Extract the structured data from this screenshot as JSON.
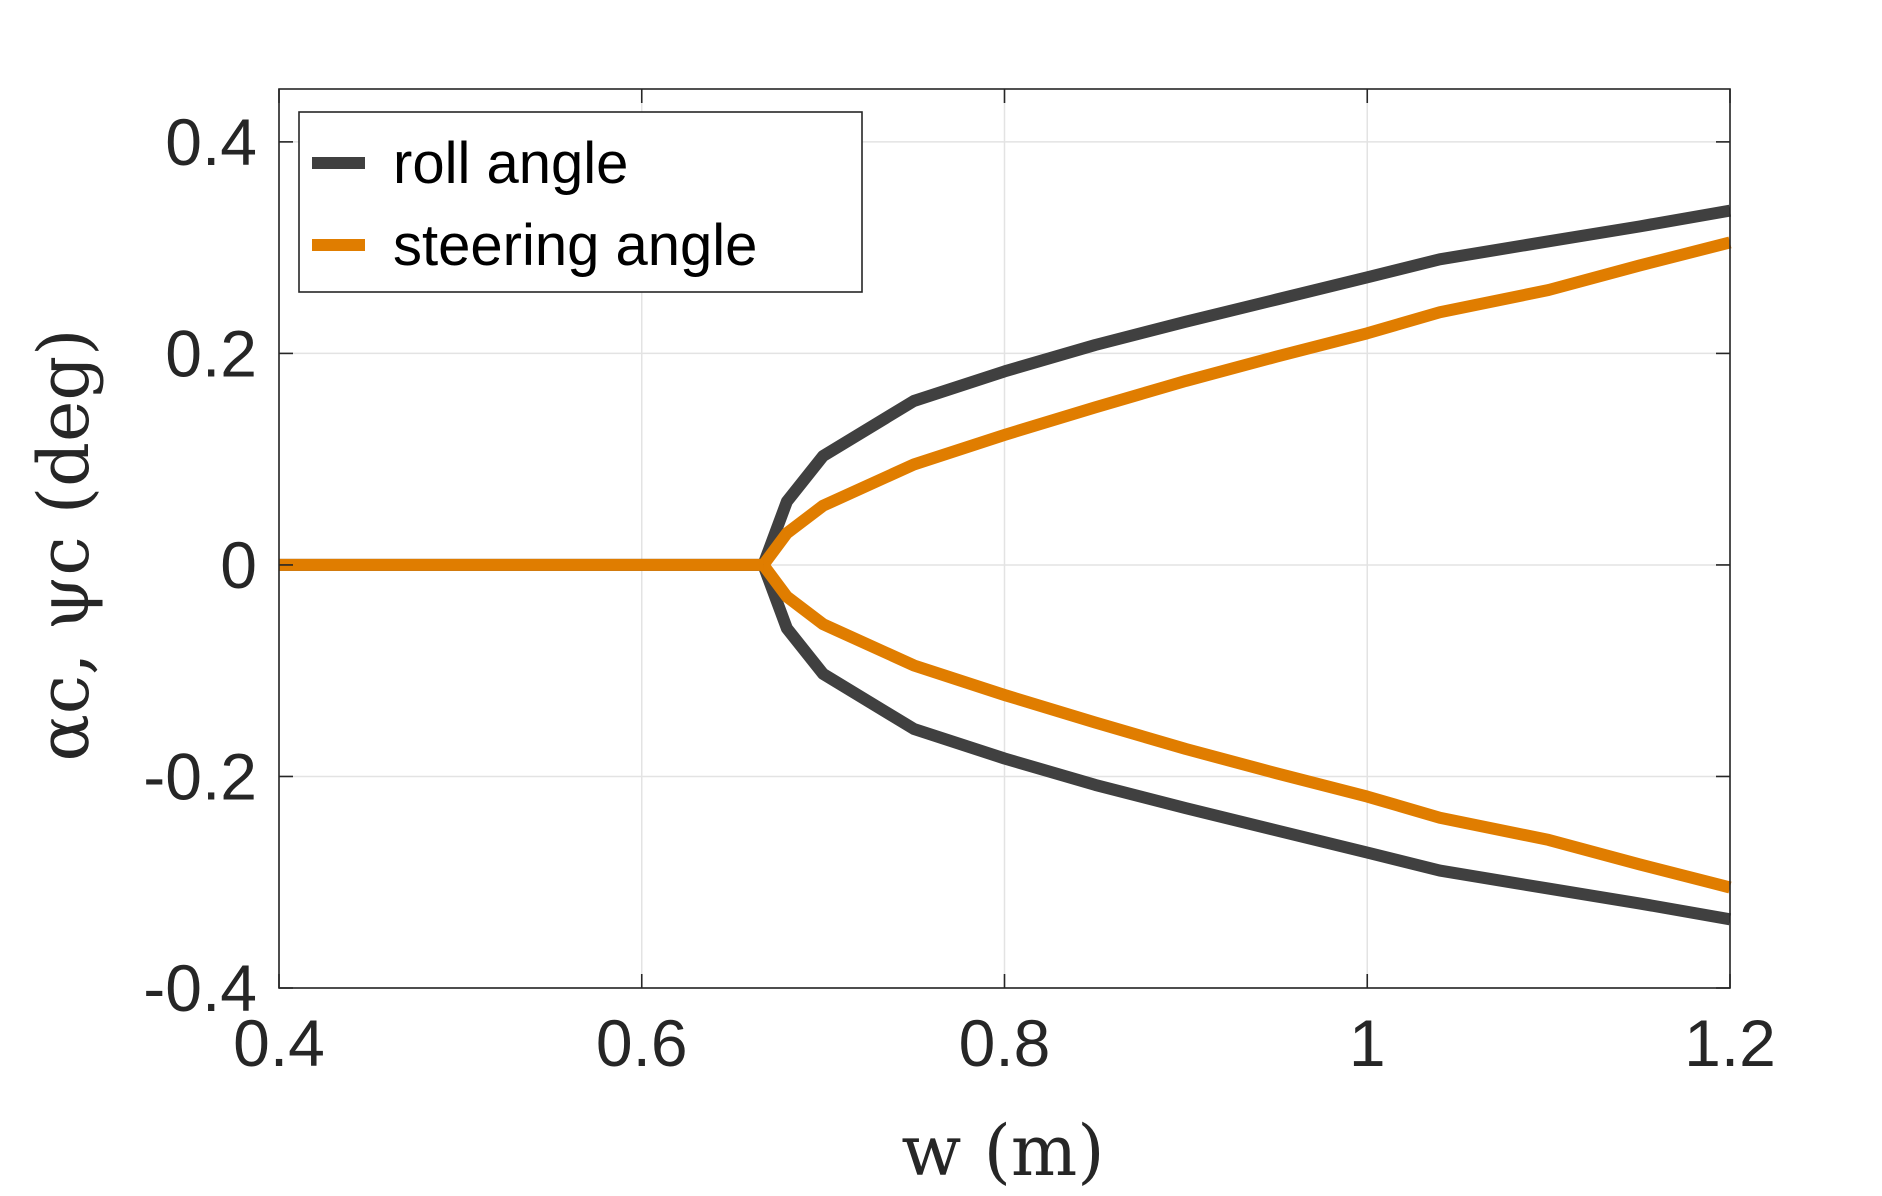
{
  "chart_data": {
    "type": "line",
    "title": "",
    "xlabel": "w (m)",
    "ylabel": "αc, ψc (deg)",
    "xlim": [
      0.4,
      1.2
    ],
    "ylim": [
      -0.4,
      0.45
    ],
    "xticks": [
      0.4,
      0.6,
      0.8,
      1.0,
      1.2
    ],
    "xtick_labels": [
      "0.4",
      "0.6",
      "0.8",
      "1",
      "1.2"
    ],
    "yticks": [
      -0.4,
      -0.2,
      0,
      0.2,
      0.4
    ],
    "ytick_labels": [
      "-0.4",
      "-0.2",
      "0",
      "0.2",
      "0.4"
    ],
    "grid": true,
    "legend_position": "top-left",
    "bifurcation_w": 0.667,
    "series": [
      {
        "name": "roll angle",
        "color": "#404040",
        "upper_branch": {
          "x": [
            0.667,
            0.68,
            0.7,
            0.75,
            0.8,
            0.85,
            0.9,
            0.95,
            1.0,
            1.04,
            1.1,
            1.15,
            1.2
          ],
          "y": [
            0.0,
            0.06,
            0.103,
            0.155,
            0.183,
            0.208,
            0.23,
            0.251,
            0.272,
            0.289,
            0.306,
            0.32,
            0.335
          ]
        },
        "lower_branch": {
          "x": [
            0.667,
            0.68,
            0.7,
            0.75,
            0.8,
            0.85,
            0.9,
            0.95,
            1.0,
            1.04,
            1.1,
            1.15,
            1.2
          ],
          "y": [
            0.0,
            -0.06,
            -0.103,
            -0.155,
            -0.183,
            -0.208,
            -0.23,
            -0.251,
            -0.272,
            -0.289,
            -0.306,
            -0.32,
            -0.335
          ]
        },
        "trivial_branch": {
          "x": [
            0.4,
            0.667
          ],
          "y": [
            0.0,
            0.0
          ]
        }
      },
      {
        "name": "steering angle",
        "color": "#E07D00",
        "upper_branch": {
          "x": [
            0.667,
            0.68,
            0.7,
            0.75,
            0.8,
            0.85,
            0.9,
            0.95,
            1.0,
            1.04,
            1.1,
            1.15,
            1.2
          ],
          "y": [
            0.0,
            0.03,
            0.056,
            0.095,
            0.123,
            0.149,
            0.174,
            0.197,
            0.219,
            0.239,
            0.26,
            0.283,
            0.305
          ]
        },
        "lower_branch": {
          "x": [
            0.667,
            0.68,
            0.7,
            0.75,
            0.8,
            0.85,
            0.9,
            0.95,
            1.0,
            1.04,
            1.1,
            1.15,
            1.2
          ],
          "y": [
            0.0,
            -0.03,
            -0.056,
            -0.095,
            -0.123,
            -0.149,
            -0.174,
            -0.197,
            -0.219,
            -0.239,
            -0.26,
            -0.283,
            -0.305
          ]
        },
        "trivial_branch": {
          "x": [
            0.4,
            0.667
          ],
          "y": [
            0.0,
            0.0
          ]
        }
      }
    ]
  }
}
